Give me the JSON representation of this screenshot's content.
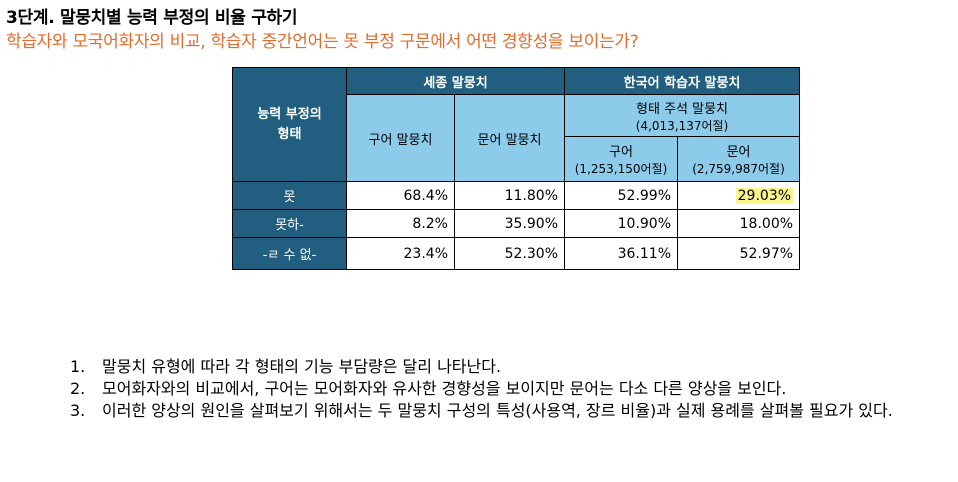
{
  "title": "3단계. 말뭉치별 능력 부정의 비율 구하기",
  "subtitle": "학습자와 모국어화자의 비교, 학습자 중간언어는 못 부정 구문에서 어떤 경향성을 보이는가?",
  "table": {
    "corner_header": "능력 부정의 형태",
    "group_sejong": "세종 말뭉치",
    "group_learner": "한국어 학습자 말뭉치",
    "sejong_spoken": "구어 말뭉치",
    "sejong_written": "문어 말뭉치",
    "annotated_title": "형태 주석 말뭉치",
    "annotated_count": "(4,013,137어절)",
    "learner_spoken": "구어",
    "learner_spoken_count": "(1,253,150어절)",
    "learner_written": "문어",
    "learner_written_count": "(2,759,987어절)",
    "rows": [
      {
        "label": "못",
        "values": [
          "68.4%",
          "11.80%",
          "52.99%",
          "29.03%"
        ]
      },
      {
        "label": "못하-",
        "values": [
          "8.2%",
          "35.90%",
          "10.90%",
          "18.00%"
        ]
      },
      {
        "label": "-ㄹ 수 없-",
        "values": [
          "23.4%",
          "52.30%",
          "36.11%",
          "52.97%"
        ]
      }
    ],
    "highlight_color": "#fbf58e"
  },
  "notes": [
    {
      "num": "1.",
      "text": "말뭉치 유형에 따라 각 형태의 기능 부담량은 달리 나타난다."
    },
    {
      "num": "2.",
      "text": "모어화자와의 비교에서, 구어는 모어화자와 유사한 경향성을 보이지만 문어는 다소 다른 양상을 보인다."
    },
    {
      "num": "3.",
      "text": "이러한 양상의 원인을 살펴보기 위해서는 두 말뭉치 구성의 특성(사용역, 장르 비율)과 실제 용례를 살펴볼 필요가 있다."
    }
  ]
}
